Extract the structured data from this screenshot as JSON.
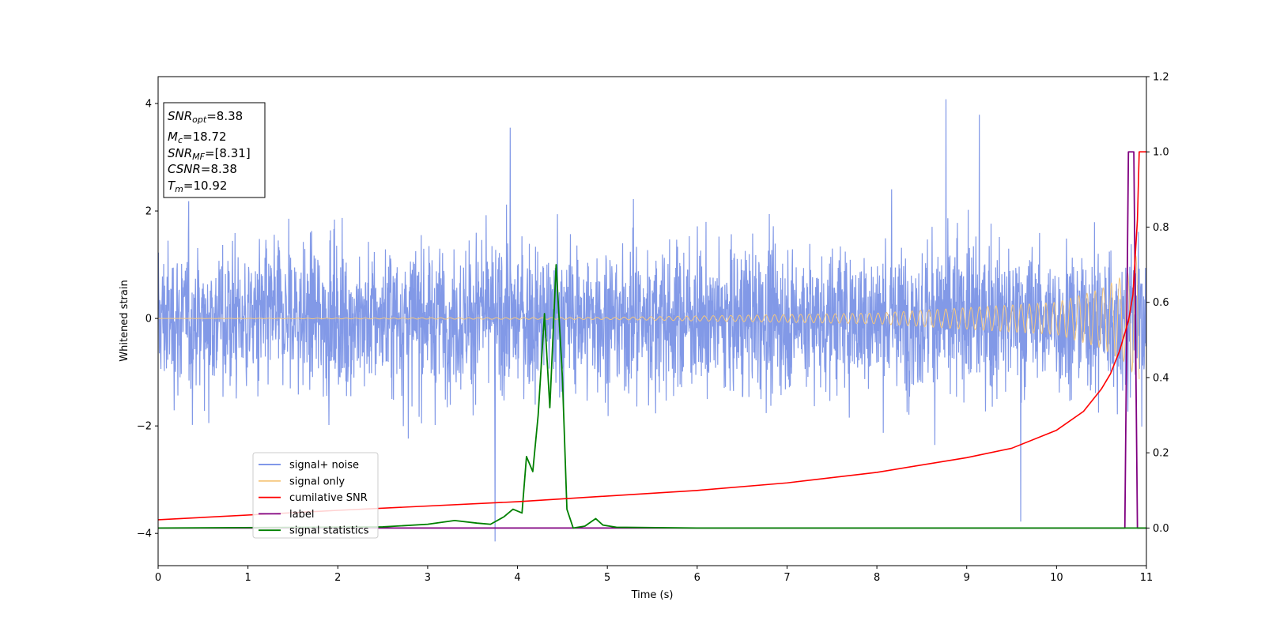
{
  "chart_data": {
    "type": "line",
    "xlabel": "Time (s)",
    "ylabel": "Whitened strain",
    "xlim": [
      0,
      11
    ],
    "ylim_left": [
      -4.6,
      4.5
    ],
    "ylim_right": [
      -0.1,
      1.2
    ],
    "x_ticks": [
      "0",
      "1",
      "2",
      "3",
      "4",
      "5",
      "6",
      "7",
      "8",
      "9",
      "10",
      "11"
    ],
    "y_ticks_left": [
      "−4",
      "−2",
      "0",
      "2",
      "4"
    ],
    "y_ticks_right": [
      "0.0",
      "0.2",
      "0.4",
      "0.6",
      "0.8",
      "1.0",
      "1.2"
    ],
    "grid": false,
    "legend_position": "lower-left",
    "series": [
      {
        "name": "signal+ noise",
        "axis": "left",
        "color": "#7b93e6",
        "description_of_values": "whitened strain noise, roughly symmetric about 0 with amplitude up to about ±4",
        "peaks": [
          {
            "x": 3.92,
            "y": 3.55
          },
          {
            "x": 8.77,
            "y": 4.08
          },
          {
            "x": 9.14,
            "y": 3.79
          },
          {
            "x": 3.75,
            "y": -4.15
          },
          {
            "x": 9.6,
            "y": -3.78
          }
        ]
      },
      {
        "name": "signal only",
        "axis": "left",
        "color": "#f5c77e",
        "envelope": [
          {
            "x": 0,
            "amp": 0.0
          },
          {
            "x": 5,
            "amp": 0.02
          },
          {
            "x": 8,
            "amp": 0.1
          },
          {
            "x": 10,
            "amp": 0.3
          },
          {
            "x": 10.5,
            "amp": 0.55
          },
          {
            "x": 10.8,
            "amp": 0.85
          },
          {
            "x": 10.92,
            "amp": 1.3
          }
        ]
      },
      {
        "name": "cumilative SNR",
        "axis": "right",
        "color": "#ff0000",
        "points": [
          [
            0,
            0.022
          ],
          [
            2,
            0.047
          ],
          [
            4,
            0.07
          ],
          [
            6,
            0.1
          ],
          [
            7,
            0.12
          ],
          [
            8,
            0.148
          ],
          [
            9,
            0.187
          ],
          [
            9.5,
            0.212
          ],
          [
            10,
            0.26
          ],
          [
            10.3,
            0.31
          ],
          [
            10.5,
            0.37
          ],
          [
            10.6,
            0.41
          ],
          [
            10.7,
            0.47
          ],
          [
            10.8,
            0.55
          ],
          [
            10.85,
            0.62
          ],
          [
            10.9,
            0.82
          ],
          [
            10.92,
            1.0
          ],
          [
            11,
            1.0
          ]
        ]
      },
      {
        "name": "label",
        "axis": "right",
        "color": "#800080",
        "points": [
          [
            0,
            0.0
          ],
          [
            10.76,
            0.0
          ],
          [
            10.8,
            1.0
          ],
          [
            10.86,
            1.0
          ],
          [
            10.9,
            0.0
          ],
          [
            11,
            0.0
          ]
        ]
      },
      {
        "name": "signal statistics",
        "axis": "right",
        "color": "#008000",
        "points": [
          [
            0,
            0.0
          ],
          [
            2.5,
            0.003
          ],
          [
            3.0,
            0.01
          ],
          [
            3.3,
            0.02
          ],
          [
            3.55,
            0.013
          ],
          [
            3.7,
            0.01
          ],
          [
            3.85,
            0.03
          ],
          [
            3.95,
            0.05
          ],
          [
            4.05,
            0.04
          ],
          [
            4.1,
            0.19
          ],
          [
            4.17,
            0.15
          ],
          [
            4.23,
            0.3
          ],
          [
            4.3,
            0.57
          ],
          [
            4.36,
            0.32
          ],
          [
            4.43,
            0.7
          ],
          [
            4.5,
            0.4
          ],
          [
            4.55,
            0.05
          ],
          [
            4.62,
            0.0
          ],
          [
            4.75,
            0.005
          ],
          [
            4.87,
            0.025
          ],
          [
            4.95,
            0.008
          ],
          [
            5.1,
            0.002
          ],
          [
            6,
            0.0
          ],
          [
            11,
            0.0
          ]
        ]
      }
    ]
  },
  "info_box": {
    "snr_opt_label": "SNR",
    "snr_opt_sub": "opt",
    "snr_opt_value": "=8.38",
    "mc_label": "M",
    "mc_sub": "c",
    "mc_value": "=18.72",
    "snr_mf_label": "SNR",
    "snr_mf_sub": "MF",
    "snr_mf_value": "=[8.31]",
    "csnr_label": "CSNR",
    "csnr_value": "=8.38",
    "tm_label": "T",
    "tm_sub": "m",
    "tm_value": "=10.92"
  }
}
